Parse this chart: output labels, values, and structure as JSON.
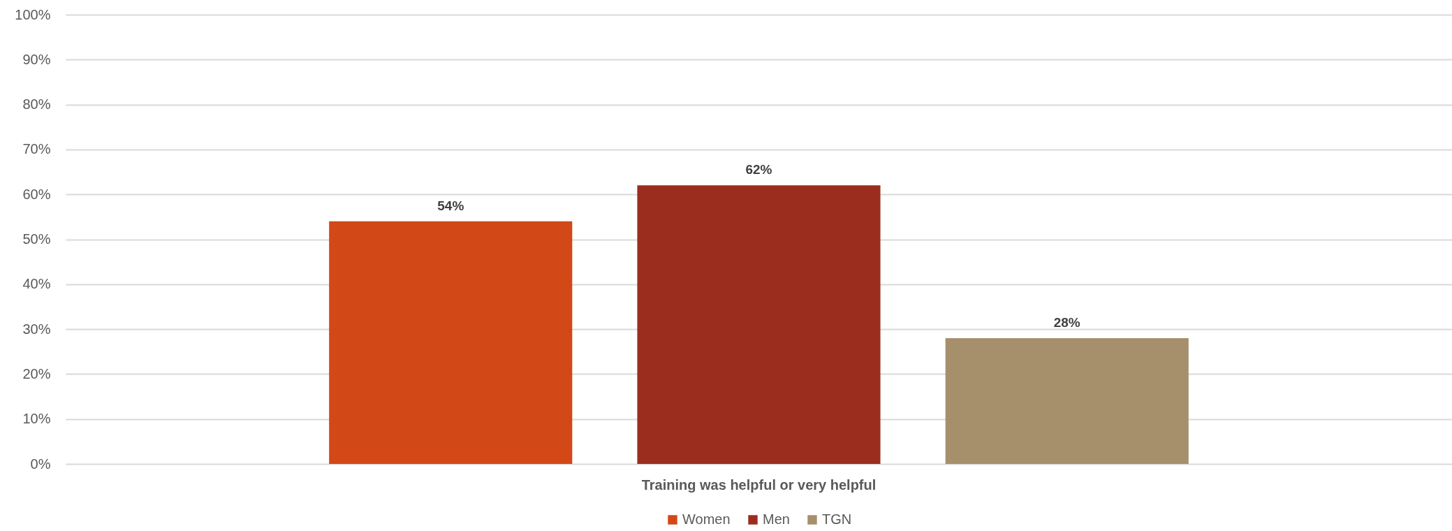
{
  "chart_data": {
    "type": "bar",
    "categories": [
      "Training was helpful or very helpful"
    ],
    "series": [
      {
        "name": "Women",
        "color": "#d34817",
        "values": [
          54
        ],
        "value_labels": [
          "54%"
        ]
      },
      {
        "name": "Men",
        "color": "#9b2d1f",
        "values": [
          62
        ],
        "value_labels": [
          "62%"
        ]
      },
      {
        "name": "TGN",
        "color": "#a68f6b",
        "values": [
          28
        ],
        "value_labels": [
          "28%"
        ]
      }
    ],
    "ylim": [
      0,
      100
    ],
    "yticks": [
      {
        "value": 0,
        "label": "0%"
      },
      {
        "value": 10,
        "label": "10%"
      },
      {
        "value": 20,
        "label": "20%"
      },
      {
        "value": 30,
        "label": "30%"
      },
      {
        "value": 40,
        "label": "40%"
      },
      {
        "value": 50,
        "label": "50%"
      },
      {
        "value": 60,
        "label": "60%"
      },
      {
        "value": 70,
        "label": "70%"
      },
      {
        "value": 80,
        "label": "80%"
      },
      {
        "value": 90,
        "label": "90%"
      },
      {
        "value": 100,
        "label": "100%"
      }
    ],
    "grid": "y",
    "legend": "bottom"
  }
}
